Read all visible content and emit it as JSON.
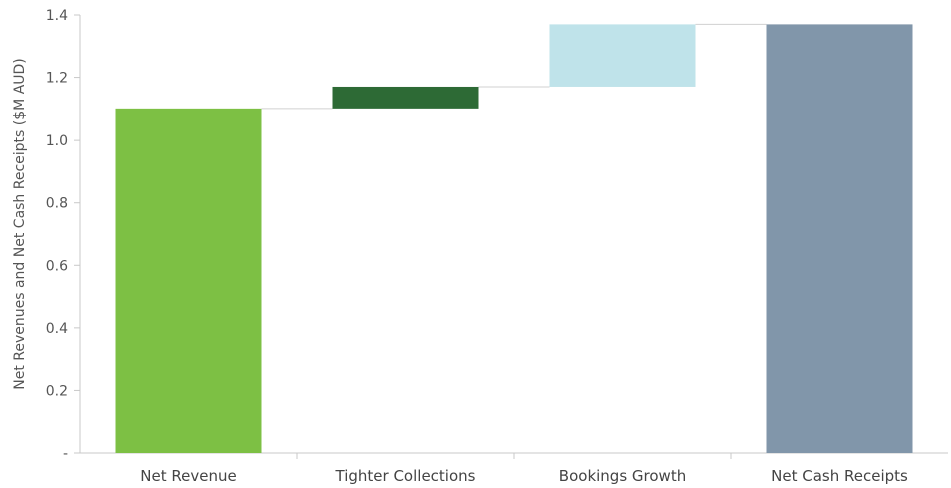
{
  "chart_data": {
    "type": "bar",
    "subtype": "waterfall",
    "categories": [
      "Net Revenue",
      "Tighter Collections",
      "Bookings Growth",
      "Net Cash Receipts"
    ],
    "steps": [
      {
        "label": "Net Revenue",
        "kind": "total",
        "value": 1.1,
        "color": "#7dc044"
      },
      {
        "label": "Tighter Collections",
        "kind": "increase",
        "value": 0.07,
        "color": "#2d6a35"
      },
      {
        "label": "Bookings Growth",
        "kind": "increase",
        "value": 0.2,
        "color": "#bfe3ea"
      },
      {
        "label": "Net Cash Receipts",
        "kind": "total",
        "value": 1.37,
        "color": "#8196aa"
      }
    ],
    "ylabel": "Net Revenues and Net Cash Receipts ($M AUD)",
    "ylim": [
      0,
      1.4
    ],
    "yticks": [
      {
        "value": 0,
        "label": "-"
      },
      {
        "value": 0.2,
        "label": "0.2"
      },
      {
        "value": 0.4,
        "label": "0.4"
      },
      {
        "value": 0.6,
        "label": "0.6"
      },
      {
        "value": 0.8,
        "label": "0.8"
      },
      {
        "value": 1.0,
        "label": "1.0"
      },
      {
        "value": 1.2,
        "label": "1.2"
      },
      {
        "value": 1.4,
        "label": "1.4"
      }
    ],
    "grid": false,
    "connectors": true
  }
}
